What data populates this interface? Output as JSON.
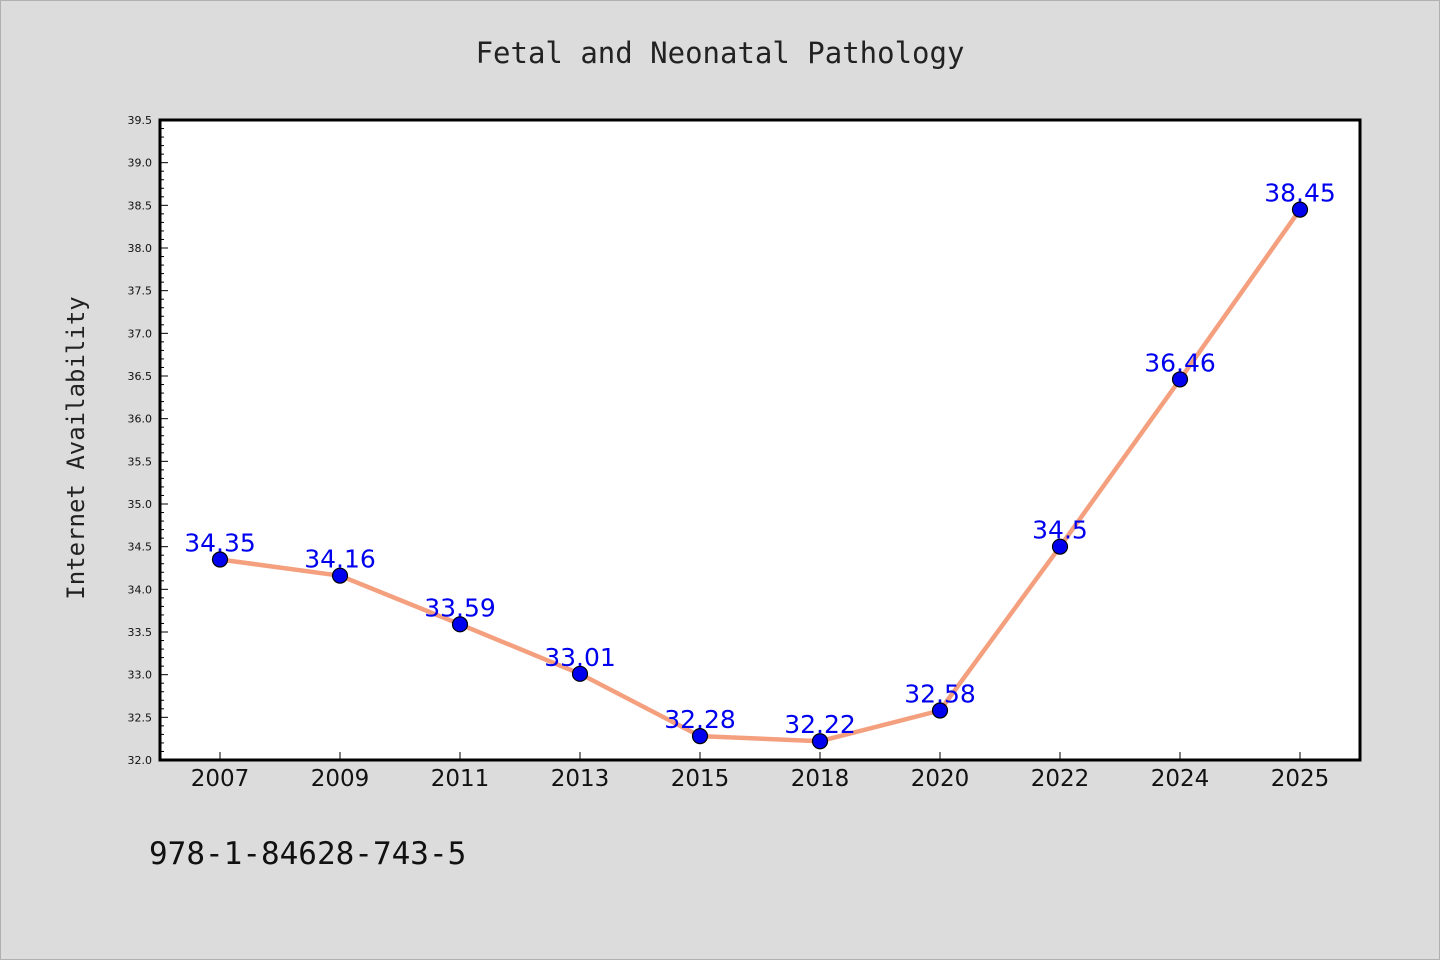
{
  "chart_data": {
    "type": "line",
    "title": "Fetal and Neonatal Pathology",
    "xlabel": "",
    "ylabel": "Internet Availability",
    "categories": [
      "2007",
      "2009",
      "2011",
      "2013",
      "2015",
      "2018",
      "2020",
      "2022",
      "2024",
      "2025"
    ],
    "series": [
      {
        "values": [
          34.35,
          34.16,
          33.59,
          33.01,
          32.28,
          32.22,
          32.58,
          34.5,
          36.46,
          38.45
        ],
        "data_labels": [
          "34.35",
          "34.16",
          "33.59",
          "33.01",
          "32.28",
          "32.22",
          "32.58",
          "34.5",
          "36.46",
          "38.45"
        ],
        "line_color": "#f4a07f",
        "marker_color": "#0000ee"
      }
    ],
    "ylim": [
      32.0,
      39.5
    ],
    "yticks": [
      "32.0",
      "32.5",
      "33.0",
      "33.5",
      "34.0",
      "34.5",
      "35.0",
      "35.5",
      "36.0",
      "36.5",
      "37.0",
      "37.5",
      "38.0",
      "38.5",
      "39.0",
      "39.5"
    ],
    "grid": false,
    "legend": "none",
    "label_color": "#0000ee",
    "background_color": "#dcdcdc",
    "plot_background_color": "#ffffff"
  },
  "footer": {
    "text": "978-1-84628-743-5"
  }
}
